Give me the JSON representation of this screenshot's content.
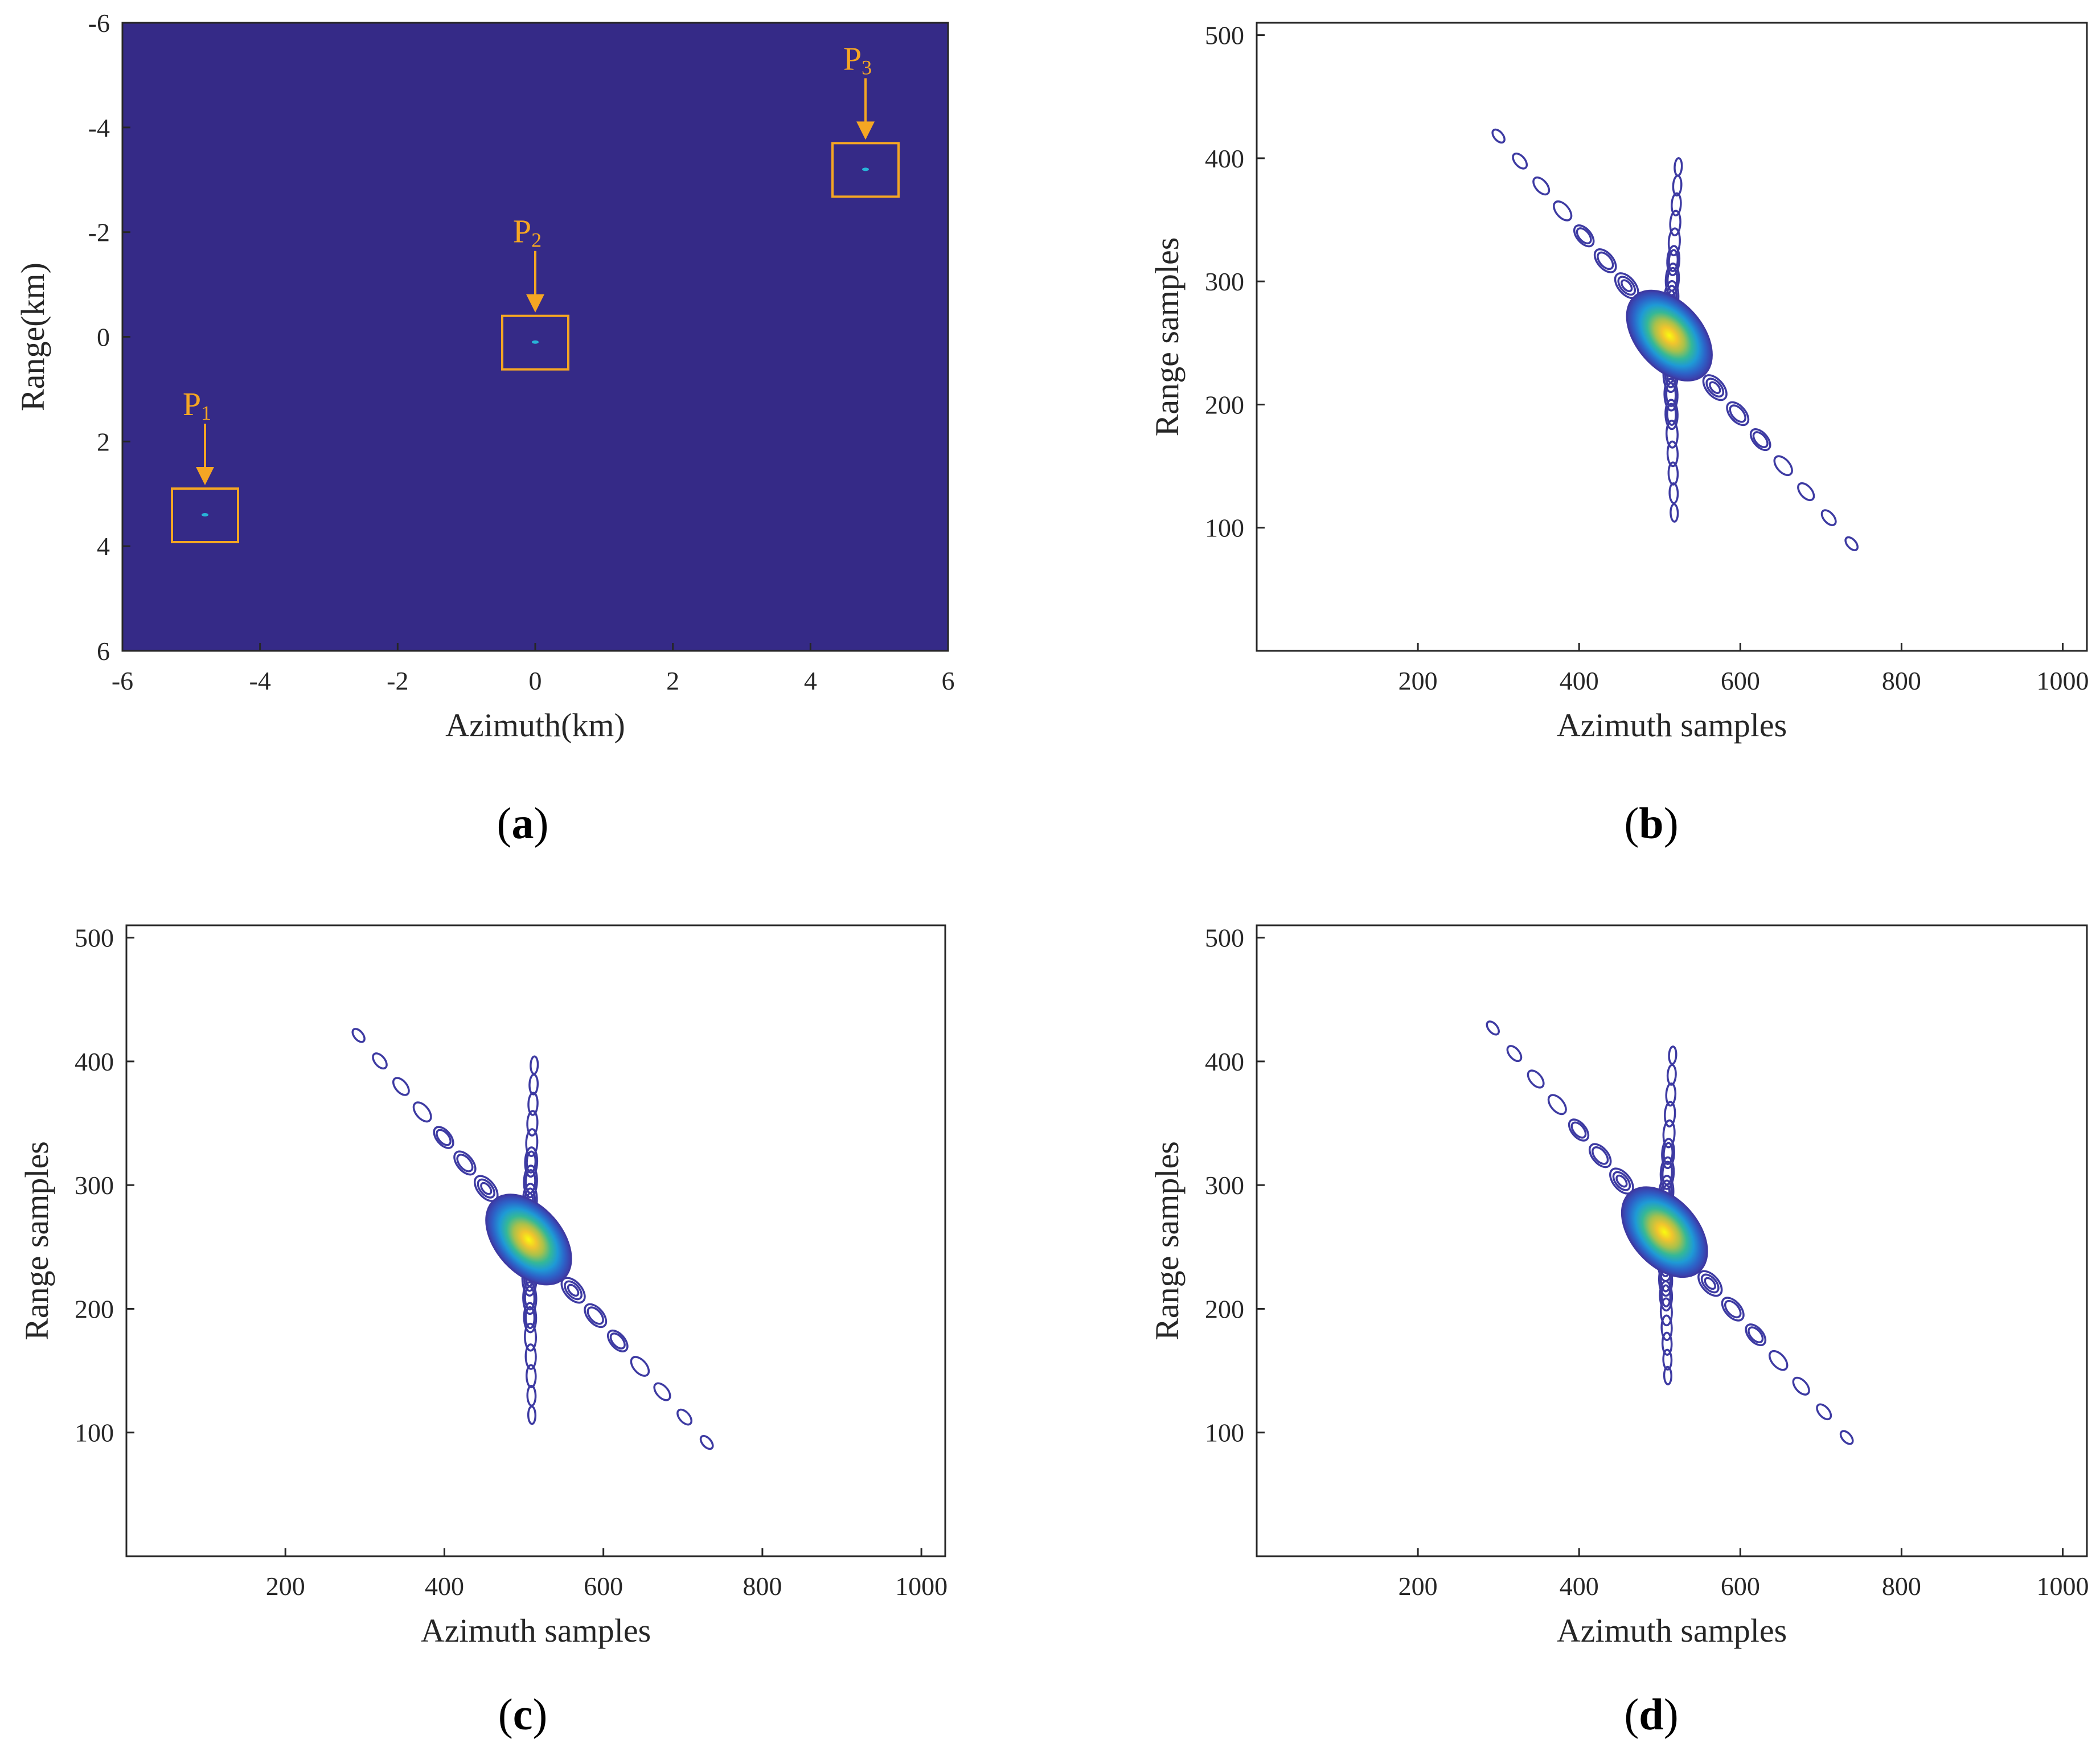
{
  "chart_data": [
    {
      "id": "a",
      "type": "heatmap",
      "caption_letter": "a",
      "xlabel": "Azimuth(km)",
      "ylabel": "Range(km)",
      "xlim": [
        -6,
        6
      ],
      "ylim": [
        -6,
        6
      ],
      "y_reversed": true,
      "xticks": [
        -6,
        -4,
        -2,
        0,
        2,
        4,
        6
      ],
      "yticks": [
        -6,
        -4,
        -2,
        0,
        2,
        4,
        6
      ],
      "background_color": "#352a87",
      "targets": [
        {
          "label": "P",
          "sub": "1",
          "azimuth": -4.8,
          "range": 3.4
        },
        {
          "label": "P",
          "sub": "2",
          "azimuth": 0.0,
          "range": 0.1
        },
        {
          "label": "P",
          "sub": "3",
          "azimuth": 4.8,
          "range": -3.2
        }
      ],
      "marker_color": "#f5a623"
    },
    {
      "id": "b",
      "type": "contour",
      "caption_letter": "b",
      "xlabel": "Azimuth samples",
      "ylabel": "Range samples",
      "xlim": [
        0,
        1030
      ],
      "ylim": [
        0,
        510
      ],
      "xticks": [
        200,
        400,
        600,
        800,
        1000
      ],
      "yticks": [
        100,
        200,
        300,
        400,
        500
      ],
      "peak": {
        "azimuth": 512,
        "range": 256
      },
      "diag_end1": {
        "azimuth": 300,
        "range": 418
      },
      "diag_end2": {
        "azimuth": 738,
        "range": 87
      },
      "vert_end1": {
        "azimuth": 523,
        "range": 393
      },
      "vert_end2": {
        "azimuth": 518,
        "range": 112
      }
    },
    {
      "id": "c",
      "type": "contour",
      "caption_letter": "c",
      "xlabel": "Azimuth samples",
      "ylabel": "Range samples",
      "xlim": [
        0,
        1030
      ],
      "ylim": [
        0,
        510
      ],
      "xticks": [
        200,
        400,
        600,
        800,
        1000
      ],
      "yticks": [
        100,
        200,
        300,
        400,
        500
      ],
      "peak": {
        "azimuth": 506,
        "range": 256
      },
      "diag_end1": {
        "azimuth": 292,
        "range": 421
      },
      "diag_end2": {
        "azimuth": 730,
        "range": 92
      },
      "vert_end1": {
        "azimuth": 513,
        "range": 397
      },
      "vert_end2": {
        "azimuth": 510,
        "range": 114
      }
    },
    {
      "id": "d",
      "type": "contour",
      "caption_letter": "d",
      "xlabel": "Azimuth samples",
      "ylabel": "Range samples",
      "xlim": [
        0,
        1030
      ],
      "ylim": [
        0,
        510
      ],
      "xticks": [
        200,
        400,
        600,
        800,
        1000
      ],
      "yticks": [
        100,
        200,
        300,
        400,
        500
      ],
      "peak": {
        "azimuth": 506,
        "range": 262
      },
      "diag_end1": {
        "azimuth": 293,
        "range": 427
      },
      "diag_end2": {
        "azimuth": 732,
        "range": 96
      },
      "vert_end1": {
        "azimuth": 516,
        "range": 405
      },
      "vert_end2": {
        "azimuth": 510,
        "range": 146
      }
    }
  ]
}
